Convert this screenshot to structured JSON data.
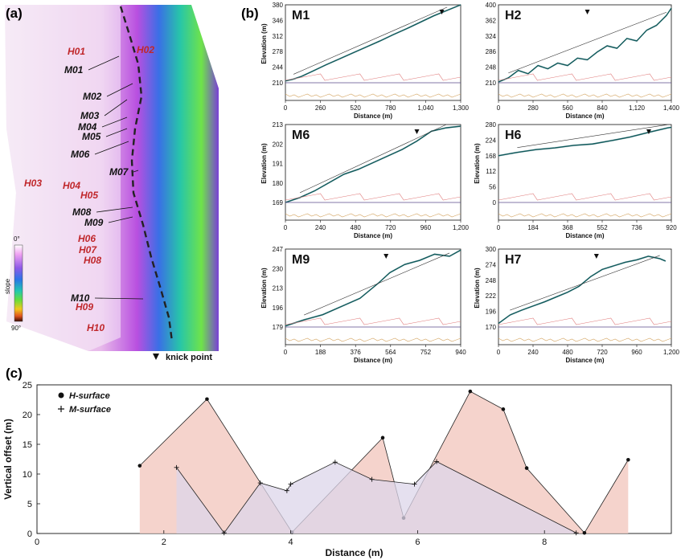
{
  "panel_labels": {
    "a": "(a)",
    "b": "(b)",
    "c": "(c)"
  },
  "map": {
    "segment_labels_m": [
      "M01",
      "M02",
      "M03",
      "M04",
      "M05",
      "M06",
      "M07",
      "M08",
      "M09",
      "M10"
    ],
    "segment_labels_h": [
      "H01",
      "H02",
      "H03",
      "H04",
      "H05",
      "H06",
      "H07",
      "H08",
      "H09",
      "H10"
    ],
    "legend": {
      "title": "slope",
      "top_value": "0°",
      "bottom_value": "90°",
      "knick_label": "knick point"
    },
    "colors": {
      "m_label": "#111111",
      "h_label": "#c0282c",
      "boundary": "#222222"
    }
  },
  "profiles": [
    {
      "id": "M1",
      "xlabel": "Distance (m)",
      "ylabel": "Elevation (m)",
      "xticks": [
        "0",
        "260",
        "520",
        "780",
        "1,040",
        "1,300"
      ],
      "yticks": [
        "380",
        "346",
        "312",
        "278",
        "244",
        "210"
      ],
      "xmax": 1300,
      "ymin": 210,
      "ymax": 380,
      "knick": 1160,
      "x": [
        0,
        60,
        120,
        200,
        300,
        400,
        500,
        600,
        700,
        800,
        900,
        1000,
        1100,
        1200,
        1300
      ],
      "y": [
        214,
        218,
        224,
        235,
        249,
        262,
        275,
        288,
        301,
        315,
        328,
        342,
        356,
        368,
        380
      ]
    },
    {
      "id": "H2",
      "xlabel": "Distance (m)",
      "ylabel": "",
      "xticks": [
        "0",
        "280",
        "560",
        "840",
        "1,120",
        "1,400"
      ],
      "yticks": [
        "400",
        "362",
        "324",
        "286",
        "248",
        "210"
      ],
      "xmax": 1400,
      "ymin": 210,
      "ymax": 400,
      "knick": 720,
      "x": [
        0,
        80,
        160,
        240,
        320,
        400,
        480,
        560,
        640,
        720,
        800,
        880,
        960,
        1040,
        1120,
        1200,
        1280,
        1360,
        1400
      ],
      "y": [
        212,
        222,
        240,
        232,
        252,
        244,
        258,
        252,
        270,
        266,
        285,
        300,
        294,
        318,
        312,
        338,
        350,
        374,
        392
      ]
    },
    {
      "id": "M6",
      "xlabel": "Distance (m)",
      "ylabel": "Elevation (m)",
      "xticks": [
        "0",
        "240",
        "480",
        "720",
        "960",
        "1,200"
      ],
      "yticks": [
        "213",
        "202",
        "191",
        "180",
        "169"
      ],
      "xmax": 1200,
      "ymin": 169,
      "ymax": 216,
      "knick": 900,
      "x": [
        0,
        100,
        200,
        300,
        400,
        500,
        600,
        700,
        800,
        900,
        1000,
        1100,
        1200
      ],
      "y": [
        169,
        172,
        176,
        181,
        186,
        189,
        193,
        197,
        201,
        206,
        212,
        214,
        215
      ]
    },
    {
      "id": "H6",
      "xlabel": "Distance (m)",
      "ylabel": "Elevation (m)",
      "xticks": [
        "0",
        "184",
        "368",
        "552",
        "736",
        "920"
      ],
      "yticks": [
        "280",
        "224",
        "168",
        "112",
        "56",
        "0"
      ],
      "xmax": 920,
      "ymin": 0,
      "ymax": 280,
      "knick": 800,
      "x": [
        0,
        100,
        200,
        300,
        400,
        500,
        600,
        700,
        800,
        900,
        920
      ],
      "y": [
        168,
        180,
        190,
        196,
        205,
        210,
        222,
        235,
        252,
        268,
        270
      ]
    },
    {
      "id": "M9",
      "xlabel": "Distance (m)",
      "ylabel": "Elevation (m)",
      "xticks": [
        "0",
        "188",
        "376",
        "564",
        "752",
        "940"
      ],
      "yticks": [
        "247",
        "230",
        "213",
        "196",
        "179"
      ],
      "xmax": 940,
      "ymin": 179,
      "ymax": 255,
      "knick": 540,
      "x": [
        0,
        100,
        200,
        300,
        400,
        500,
        560,
        640,
        720,
        800,
        880,
        940
      ],
      "y": [
        180,
        186,
        191,
        199,
        207,
        222,
        232,
        240,
        244,
        250,
        248,
        254
      ]
    },
    {
      "id": "H7",
      "xlabel": "Distance (m)",
      "ylabel": "Elevation (m)",
      "xticks": [
        "0",
        "240",
        "480",
        "720",
        "960",
        "1,200"
      ],
      "yticks": [
        "300",
        "274",
        "248",
        "222",
        "196",
        "170"
      ],
      "xmax": 1200,
      "ymin": 170,
      "ymax": 300,
      "knick": 680,
      "x": [
        0,
        80,
        160,
        240,
        320,
        400,
        480,
        560,
        640,
        720,
        800,
        880,
        960,
        1040,
        1120,
        1160
      ],
      "y": [
        176,
        190,
        198,
        205,
        212,
        220,
        228,
        238,
        254,
        266,
        272,
        278,
        282,
        288,
        284,
        280
      ]
    }
  ],
  "chart_data": {
    "type": "area",
    "xlabel": "Distance (m)",
    "ylabel": "Vertical offset (m)",
    "xlim": [
      0,
      10
    ],
    "ylim": [
      0,
      25
    ],
    "xticks": [
      "0",
      "2",
      "4",
      "6",
      "8"
    ],
    "yticks": [
      "0",
      "5",
      "10",
      "15",
      "20",
      "25"
    ],
    "series": [
      {
        "name": "H-surface",
        "fill": "#f3cbc3",
        "x": [
          1.62,
          2.68,
          4.02,
          5.45,
          5.78,
          6.83,
          7.35,
          7.72,
          8.63,
          9.32
        ],
        "y": [
          11.4,
          22.6,
          0.2,
          16.1,
          2.6,
          23.9,
          20.9,
          11.0,
          0.1,
          12.4
        ]
      },
      {
        "name": "M-surface",
        "fill": "#dcd6ea",
        "x": [
          2.2,
          2.95,
          3.52,
          3.94,
          4.0,
          4.7,
          5.28,
          5.95,
          6.3,
          8.5
        ],
        "y": [
          11.1,
          0.1,
          8.5,
          7.2,
          8.3,
          12.0,
          9.1,
          8.3,
          12.1,
          0.1
        ]
      }
    ],
    "legend": {
      "placement": "top-left"
    }
  }
}
